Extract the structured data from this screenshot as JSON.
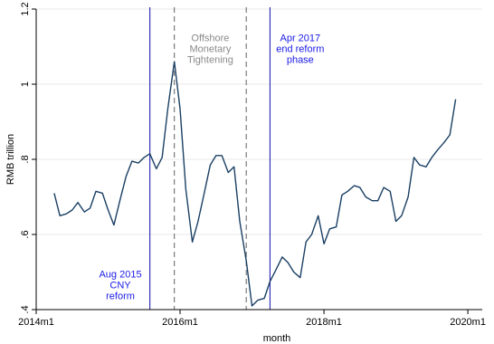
{
  "chart_data": {
    "type": "line",
    "title": "",
    "xlabel": "month",
    "ylabel": "RMB trillion",
    "xlim": [
      2014.0,
      2020.2
    ],
    "ylim": [
      0.4,
      1.2
    ],
    "x_ticks": [
      {
        "value": 2014.0,
        "label": "2014m1"
      },
      {
        "value": 2016.0,
        "label": "2016m1"
      },
      {
        "value": 2018.0,
        "label": "2018m1"
      },
      {
        "value": 2020.0,
        "label": "2020m1"
      }
    ],
    "y_ticks": [
      {
        "value": 0.4,
        "label": ".4"
      },
      {
        "value": 0.6,
        "label": ".6"
      },
      {
        "value": 0.8,
        "label": ".8"
      },
      {
        "value": 1.0,
        "label": "1"
      },
      {
        "value": 1.2,
        "label": "1.2"
      }
    ],
    "grid": true,
    "series": [
      {
        "color": "#1a3f63",
        "points": [
          [
            2014.25,
            0.71
          ],
          [
            2014.33,
            0.65
          ],
          [
            2014.42,
            0.655
          ],
          [
            2014.5,
            0.665
          ],
          [
            2014.58,
            0.685
          ],
          [
            2014.67,
            0.66
          ],
          [
            2014.75,
            0.67
          ],
          [
            2014.83,
            0.715
          ],
          [
            2014.92,
            0.71
          ],
          [
            2015.0,
            0.665
          ],
          [
            2015.08,
            0.625
          ],
          [
            2015.17,
            0.695
          ],
          [
            2015.25,
            0.755
          ],
          [
            2015.33,
            0.795
          ],
          [
            2015.42,
            0.79
          ],
          [
            2015.5,
            0.805
          ],
          [
            2015.58,
            0.815
          ],
          [
            2015.67,
            0.775
          ],
          [
            2015.75,
            0.805
          ],
          [
            2015.83,
            0.935
          ],
          [
            2015.92,
            1.06
          ],
          [
            2016.0,
            0.935
          ],
          [
            2016.08,
            0.72
          ],
          [
            2016.17,
            0.58
          ],
          [
            2016.25,
            0.635
          ],
          [
            2016.33,
            0.705
          ],
          [
            2016.42,
            0.785
          ],
          [
            2016.5,
            0.81
          ],
          [
            2016.58,
            0.81
          ],
          [
            2016.67,
            0.765
          ],
          [
            2016.75,
            0.78
          ],
          [
            2016.83,
            0.635
          ],
          [
            2016.92,
            0.53
          ],
          [
            2017.0,
            0.41
          ],
          [
            2017.08,
            0.425
          ],
          [
            2017.17,
            0.43
          ],
          [
            2017.25,
            0.475
          ],
          [
            2017.33,
            0.505
          ],
          [
            2017.42,
            0.54
          ],
          [
            2017.5,
            0.525
          ],
          [
            2017.58,
            0.5
          ],
          [
            2017.67,
            0.485
          ],
          [
            2017.75,
            0.58
          ],
          [
            2017.83,
            0.6
          ],
          [
            2017.92,
            0.65
          ],
          [
            2018.0,
            0.575
          ],
          [
            2018.08,
            0.615
          ],
          [
            2018.17,
            0.62
          ],
          [
            2018.25,
            0.705
          ],
          [
            2018.33,
            0.715
          ],
          [
            2018.42,
            0.73
          ],
          [
            2018.5,
            0.725
          ],
          [
            2018.58,
            0.7
          ],
          [
            2018.67,
            0.69
          ],
          [
            2018.75,
            0.69
          ],
          [
            2018.83,
            0.725
          ],
          [
            2018.92,
            0.715
          ],
          [
            2019.0,
            0.635
          ],
          [
            2019.08,
            0.65
          ],
          [
            2019.17,
            0.7
          ],
          [
            2019.25,
            0.805
          ],
          [
            2019.33,
            0.785
          ],
          [
            2019.42,
            0.78
          ],
          [
            2019.5,
            0.805
          ],
          [
            2019.58,
            0.825
          ],
          [
            2019.67,
            0.845
          ],
          [
            2019.75,
            0.865
          ],
          [
            2019.83,
            0.96
          ]
        ]
      }
    ],
    "reference_lines": [
      {
        "x": 2015.58,
        "style": "solid",
        "color": "#2525b0"
      },
      {
        "x": 2015.92,
        "style": "dashed",
        "color": "#6d6d6d"
      },
      {
        "x": 2016.92,
        "style": "dashed",
        "color": "#6d6d6d"
      },
      {
        "x": 2017.25,
        "style": "solid",
        "color": "#2525b0"
      }
    ],
    "annotations": [
      {
        "lines": [
          "Offshore",
          "Monetary",
          "Tightening"
        ],
        "color": "#8a8a8a",
        "x": 2016.42,
        "y": 1.115
      },
      {
        "lines": [
          "Apr 2017",
          "end reform",
          "phase"
        ],
        "color": "#1a1ae6",
        "x": 2017.67,
        "y": 1.115
      },
      {
        "lines": [
          "Aug 2015",
          "CNY",
          "reform"
        ],
        "color": "#1a1ae6",
        "x": 2015.17,
        "y": 0.485
      }
    ]
  }
}
